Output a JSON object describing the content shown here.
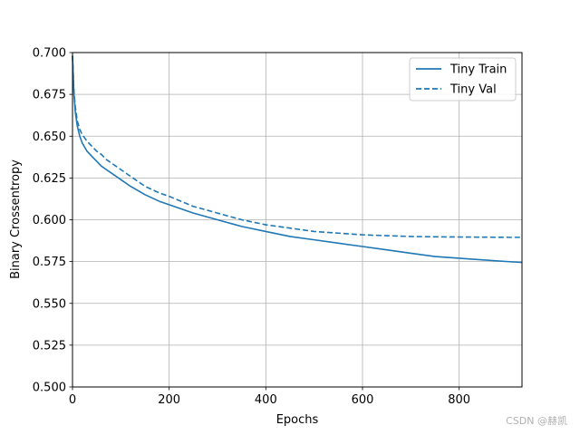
{
  "chart_data": {
    "type": "line",
    "title": "",
    "xlabel": "Epochs",
    "ylabel": "Binary Crossentropy",
    "xlim": [
      0,
      930
    ],
    "ylim": [
      0.5,
      0.7
    ],
    "grid": true,
    "legend_position": "top-right",
    "xticks": [
      "0",
      "200",
      "400",
      "600",
      "800"
    ],
    "yticks": [
      "0.500",
      "0.525",
      "0.550",
      "0.575",
      "0.600",
      "0.625",
      "0.650",
      "0.675",
      "0.700"
    ],
    "series": [
      {
        "name": "Tiny Train",
        "style": "solid",
        "color": "#1f77b4",
        "x": [
          0,
          3,
          6,
          10,
          15,
          20,
          30,
          40,
          50,
          60,
          70,
          80,
          100,
          120,
          150,
          180,
          200,
          250,
          300,
          350,
          400,
          450,
          500,
          550,
          600,
          650,
          700,
          750,
          800,
          850,
          900,
          930
        ],
        "y": [
          0.698,
          0.675,
          0.664,
          0.656,
          0.65,
          0.646,
          0.641,
          0.638,
          0.635,
          0.632,
          0.63,
          0.628,
          0.624,
          0.62,
          0.615,
          0.611,
          0.609,
          0.604,
          0.6,
          0.596,
          0.593,
          0.59,
          0.588,
          0.586,
          0.584,
          0.582,
          0.58,
          0.578,
          0.577,
          0.576,
          0.575,
          0.5745
        ]
      },
      {
        "name": "Tiny Val",
        "style": "dashed",
        "color": "#1f77b4",
        "x": [
          0,
          3,
          6,
          10,
          15,
          20,
          30,
          40,
          50,
          60,
          70,
          80,
          100,
          120,
          150,
          180,
          200,
          250,
          300,
          350,
          400,
          450,
          500,
          550,
          600,
          650,
          700,
          750,
          800,
          850,
          900,
          930
        ],
        "y": [
          0.698,
          0.677,
          0.667,
          0.659,
          0.654,
          0.651,
          0.647,
          0.644,
          0.641,
          0.639,
          0.636,
          0.634,
          0.63,
          0.626,
          0.62,
          0.616,
          0.614,
          0.608,
          0.604,
          0.6,
          0.597,
          0.595,
          0.593,
          0.592,
          0.591,
          0.5905,
          0.59,
          0.5898,
          0.5897,
          0.5896,
          0.5895,
          0.5895
        ]
      }
    ]
  },
  "watermark": "CSDN @赫凯"
}
